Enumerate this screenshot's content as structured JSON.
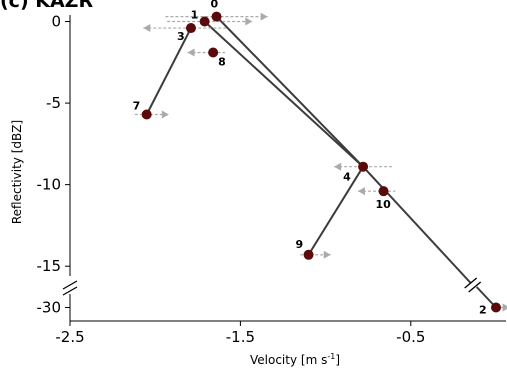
{
  "chart_data": {
    "type": "scatter",
    "title": "(c) KAZR",
    "xlabel": "Velocity [m s",
    "xlabel_sup": "-1",
    "xlabel_end": "]",
    "ylabel": "Reflectivity [dBZ]",
    "xlim": [
      -2.5,
      0.0
    ],
    "ylim_upper": [
      -15.6,
      0.4
    ],
    "ylim_lower_break": [
      -31,
      -29
    ],
    "xticks": [
      -2.5,
      -1.5,
      -0.5
    ],
    "xtick_labels": [
      "-2.5",
      "-1.5",
      "-0.5"
    ],
    "yticks_upper": [
      0,
      -5,
      -10,
      -15
    ],
    "ytick_labels_upper": [
      "0",
      "-5",
      "-10",
      "-15"
    ],
    "yticks_lower": [
      -30
    ],
    "ytick_labels_lower": [
      "-30"
    ],
    "grid": false,
    "marker_color": "#5a0a0a",
    "line_color": "#3c3c3c",
    "error_color": "#aaaaaa",
    "points": [
      {
        "label": "0",
        "x": -1.64,
        "y": 0.3,
        "xerr_left": 0.3,
        "xerr_right": 0.3,
        "arrow_dir": "right"
      },
      {
        "label": "1",
        "x": -1.71,
        "y": 0.0,
        "xerr_left": 0.22,
        "xerr_right": 0.28,
        "arrow_dir": "right"
      },
      {
        "label": "2",
        "x": 0.0,
        "y": -30.0,
        "xerr_left": 0.0,
        "xerr_right": 0.08,
        "arrow_dir": "right"
      },
      {
        "label": "3",
        "x": -1.79,
        "y": -0.4,
        "xerr_left": 0.28,
        "xerr_right": 0.22,
        "arrow_dir": "left"
      },
      {
        "label": "4",
        "x": -0.78,
        "y": -8.9,
        "xerr_left": 0.17,
        "xerr_right": 0.17,
        "arrow_dir": "left"
      },
      {
        "label": "7",
        "x": -2.05,
        "y": -5.7,
        "xerr_left": 0.07,
        "xerr_right": 0.13,
        "arrow_dir": "right"
      },
      {
        "label": "8",
        "x": -1.66,
        "y": -1.9,
        "xerr_left": 0.15,
        "xerr_right": 0.07,
        "arrow_dir": "left"
      },
      {
        "label": "9",
        "x": -1.1,
        "y": -14.3,
        "xerr_left": 0.05,
        "xerr_right": 0.13,
        "arrow_dir": "right"
      },
      {
        "label": "10",
        "x": -0.66,
        "y": -10.4,
        "xerr_left": 0.15,
        "xerr_right": 0.07,
        "arrow_dir": "left"
      }
    ],
    "connections": [
      [
        "0",
        "4"
      ],
      [
        "1",
        "4"
      ],
      [
        "4",
        "2"
      ],
      [
        "3",
        "7"
      ],
      [
        "4",
        "9"
      ]
    ]
  }
}
